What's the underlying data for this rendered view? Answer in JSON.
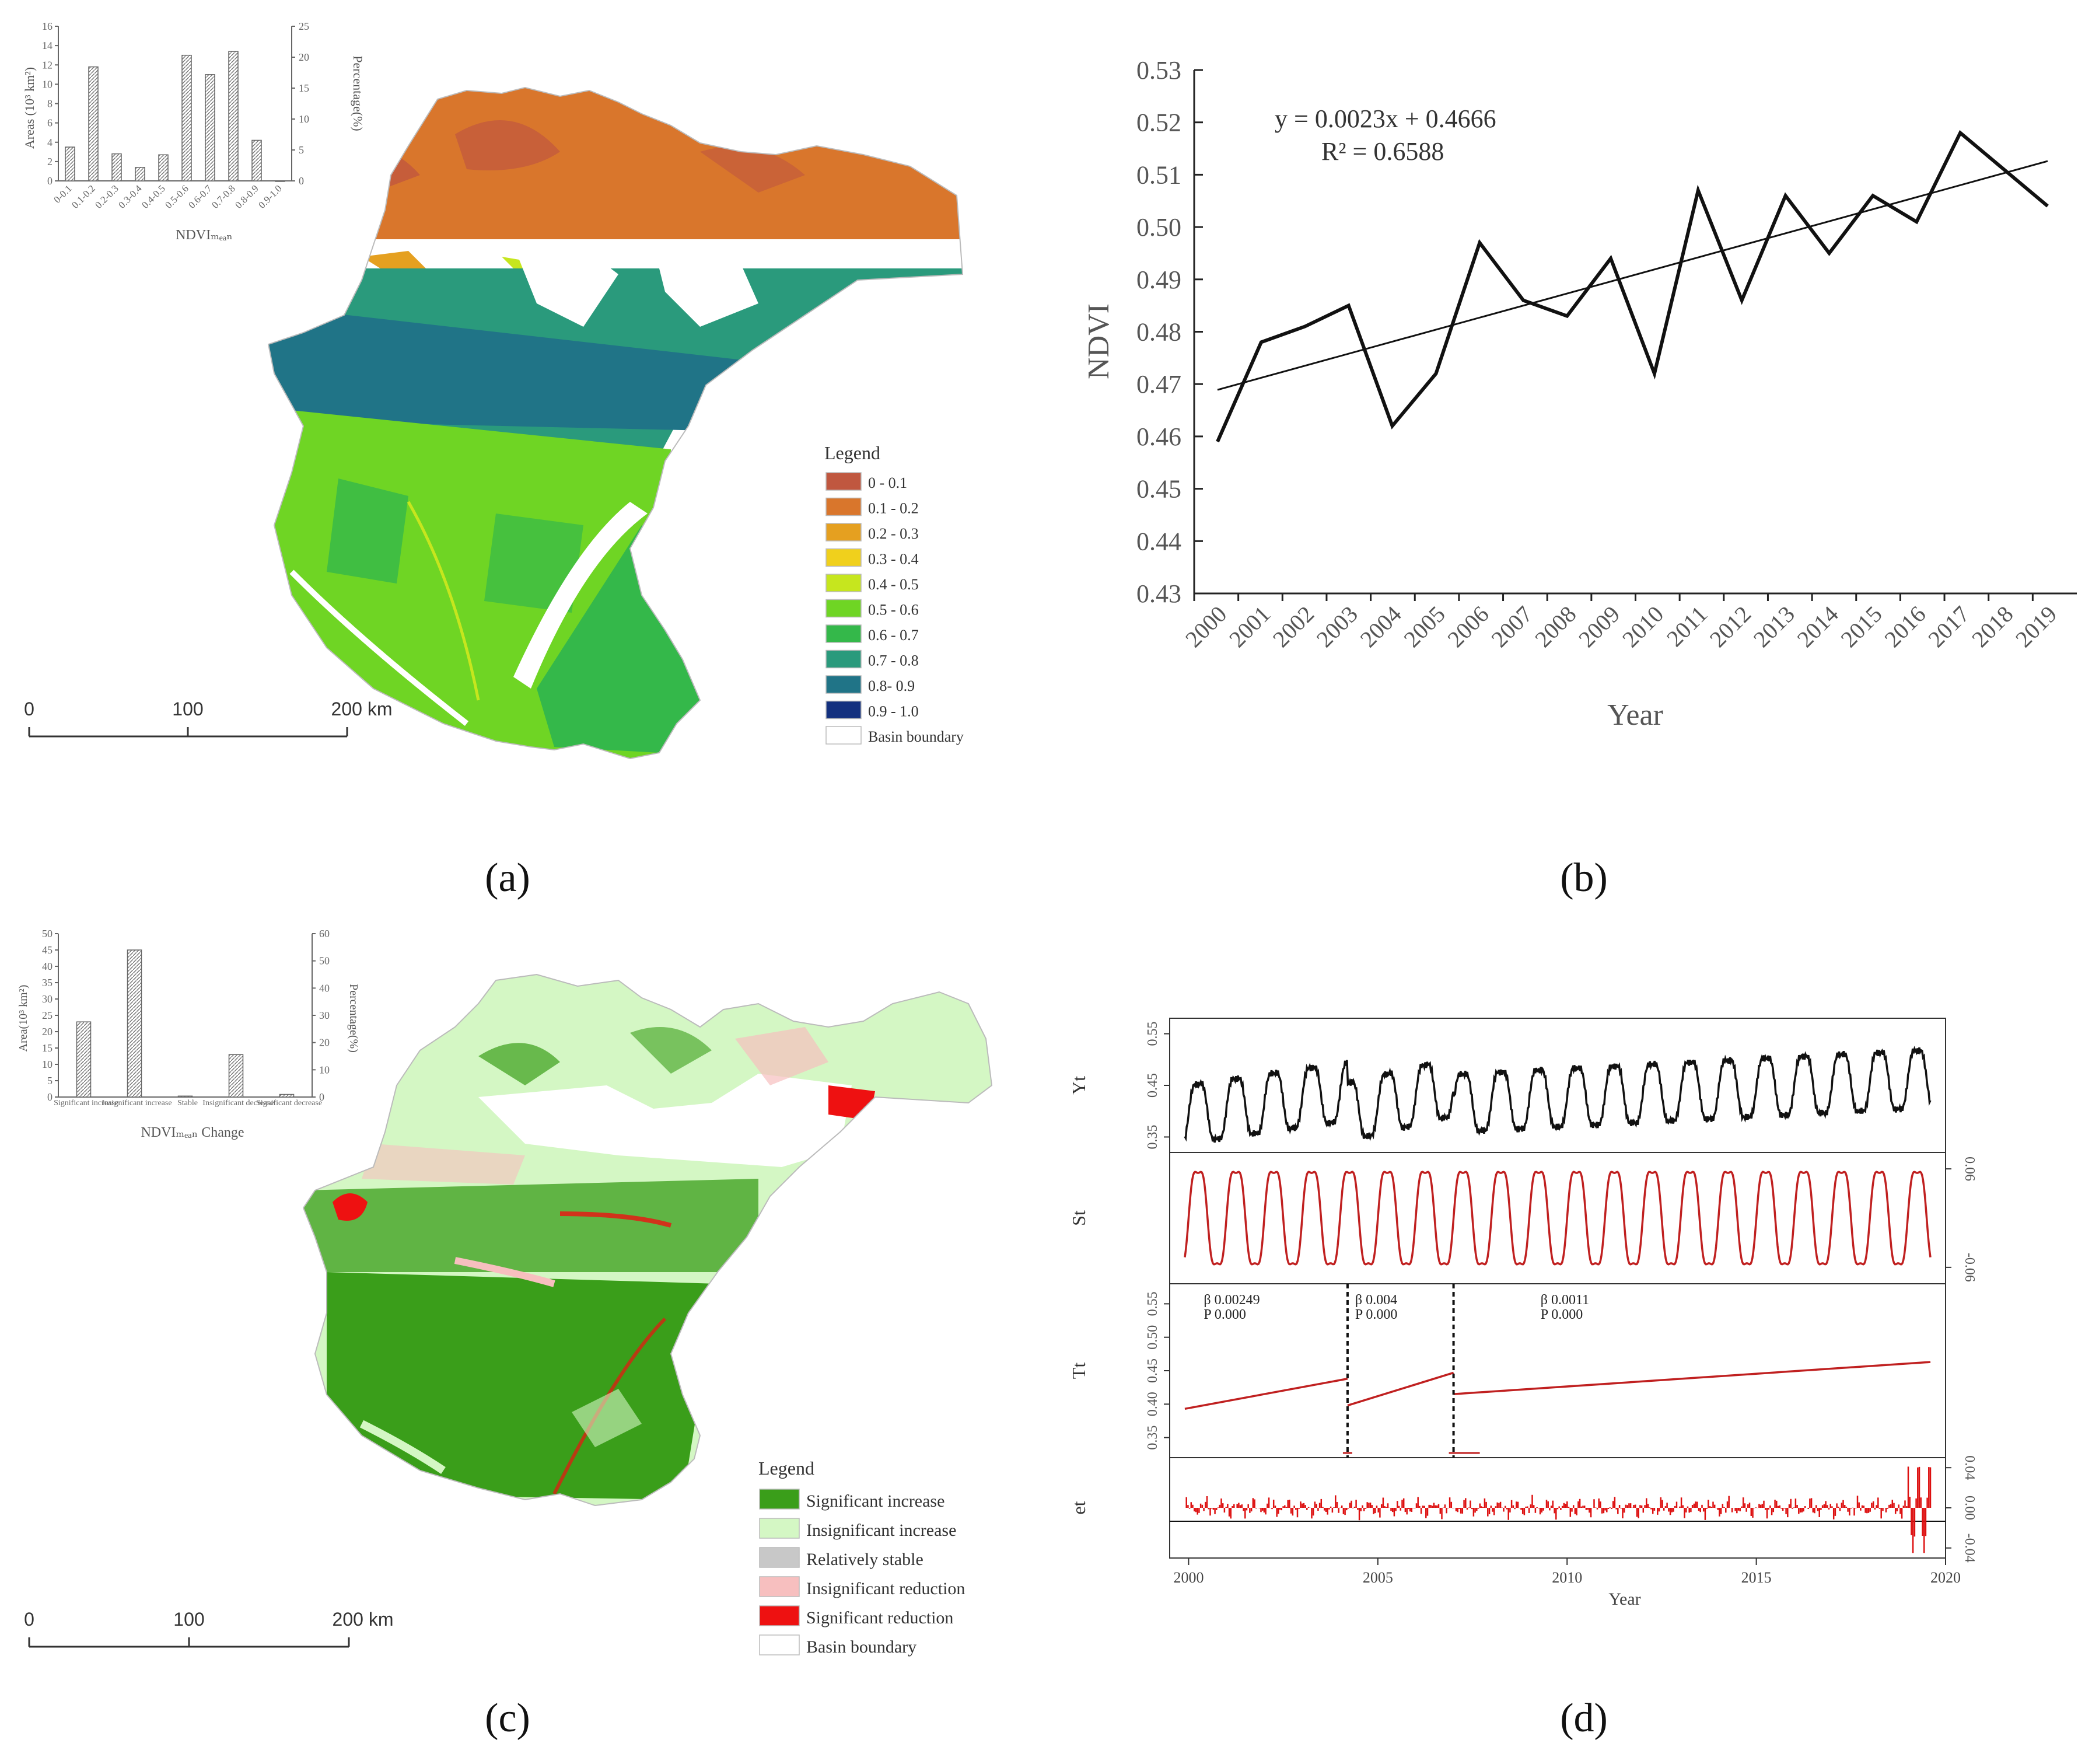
{
  "panel_labels": [
    "(a)",
    "(b)",
    "(c)",
    "(d)"
  ],
  "panel_a": {
    "legend_title": "Legend",
    "legend_items": [
      {
        "label": "0 - 0.1",
        "color": "#c0573f"
      },
      {
        "label": "0.1 - 0.2",
        "color": "#d9762c"
      },
      {
        "label": "0.2 - 0.3",
        "color": "#e5a020"
      },
      {
        "label": "0.3 - 0.4",
        "color": "#f0d01c"
      },
      {
        "label": "0.4 - 0.5",
        "color": "#c6e61e"
      },
      {
        "label": "0.5 - 0.6",
        "color": "#6fd524"
      },
      {
        "label": "0.6 - 0.7",
        "color": "#34b84a"
      },
      {
        "label": "0.7 - 0.8",
        "color": "#2a9a7c"
      },
      {
        "label": "0.8- 0.9",
        "color": "#207487"
      },
      {
        "label": "0.9 - 1.0",
        "color": "#13307f"
      },
      {
        "label": "Basin boundary",
        "color": "#ffffff"
      }
    ],
    "scale_labels": [
      "0",
      "100",
      "200 km"
    ],
    "inset": {
      "ylabel_left": "Areas (10³ km²)",
      "ylabel_right": "Percentage(%)",
      "xlabel": "NDVIₘₑₐₙ",
      "yticks_left": [
        "0",
        "2",
        "4",
        "6",
        "8",
        "10",
        "12",
        "14",
        "16"
      ],
      "yticks_right": [
        "0",
        "5",
        "10",
        "15",
        "20",
        "25"
      ],
      "categories": [
        "0-0.1",
        "0.1-0.2",
        "0.2-0.3",
        "0.3-0.4",
        "0.4-0.5",
        "0.5-0.6",
        "0.6-0.7",
        "0.7-0.8",
        "0.8-0.9",
        "0.9-1.0"
      ],
      "values": [
        3.5,
        11.8,
        2.8,
        1.4,
        2.7,
        13.0,
        11.0,
        13.4,
        4.2,
        0
      ]
    }
  },
  "panel_c": {
    "legend_title": "Legend",
    "legend_items": [
      {
        "label": "Significant increase",
        "color": "#3a9e1a"
      },
      {
        "label": "Insignificant increase",
        "color": "#d4f7c4"
      },
      {
        "label": "Relatively stable",
        "color": "#c8c8c8"
      },
      {
        "label": "Insignificant reduction",
        "color": "#f7bfbf"
      },
      {
        "label": "Significant reduction",
        "color": "#ee1111"
      },
      {
        "label": "Basin boundary",
        "color": "#ffffff"
      }
    ],
    "scale_labels": [
      "0",
      "100",
      "200 km"
    ],
    "inset": {
      "ylabel_left": "Area(10³ km²)",
      "ylabel_right": "Percentage(%)",
      "xlabel": "NDVIₘₑₐₙ Change",
      "yticks_left": [
        "0",
        "5",
        "10",
        "15",
        "20",
        "25",
        "30",
        "35",
        "40",
        "45",
        "50"
      ],
      "yticks_right": [
        "0",
        "10",
        "20",
        "30",
        "40",
        "50",
        "60"
      ],
      "categories": [
        "Significant increase",
        "Insignificant increase",
        "Stable",
        "Insignificant decrease",
        "Significant decrease"
      ],
      "values": [
        23,
        45,
        0.3,
        13,
        0.8
      ]
    }
  },
  "chart_data": [
    {
      "panel": "b",
      "type": "line",
      "xlabel": "Year",
      "ylabel": "NDVI",
      "ylim": [
        0.43,
        0.53
      ],
      "yticks": [
        "0.43",
        "0.44",
        "0.45",
        "0.46",
        "0.47",
        "0.48",
        "0.49",
        "0.50",
        "0.51",
        "0.52",
        "0.53"
      ],
      "x": [
        "2000",
        "2001",
        "2002",
        "2003",
        "2004",
        "2005",
        "2006",
        "2007",
        "2008",
        "2009",
        "2010",
        "2011",
        "2012",
        "2013",
        "2014",
        "2015",
        "2016",
        "2017",
        "2018",
        "2019"
      ],
      "values": [
        0.459,
        0.478,
        0.481,
        0.485,
        0.462,
        0.472,
        0.497,
        0.486,
        0.483,
        0.494,
        0.472,
        0.507,
        0.486,
        0.506,
        0.495,
        0.506,
        0.501,
        0.518,
        0.511,
        0.504
      ],
      "trendline": {
        "slope": 0.0023,
        "intercept": 0.4666
      },
      "annotations": [
        "y = 0.0023x + 0.4666",
        "R² = 0.6588"
      ]
    },
    {
      "panel": "d",
      "type": "line",
      "xlabel": "Year",
      "xticks": [
        "2000",
        "2005",
        "2010",
        "2015",
        "2020"
      ],
      "xlim": [
        1999.5,
        2020
      ],
      "rows": [
        {
          "name": "Yt",
          "yticks": [
            "0.35",
            "0.45",
            "0.55"
          ],
          "ylim": [
            0.32,
            0.58
          ]
        },
        {
          "name": "St",
          "yticks_right": [
            "-0.06",
            "0.06"
          ],
          "ylim": [
            -0.08,
            0.08
          ]
        },
        {
          "name": "Tt",
          "yticks": [
            "0.35",
            "0.40",
            "0.45",
            "0.50",
            "0.55"
          ],
          "ylim": [
            0.32,
            0.58
          ]
        },
        {
          "name": "et",
          "yticks_right": [
            "-0.04",
            "0.00",
            "0.04"
          ],
          "ylim": [
            -0.05,
            0.05
          ]
        }
      ],
      "trend_segments": [
        {
          "x": [
            1999.9,
            2004.2
          ],
          "y": [
            0.393,
            0.438
          ]
        },
        {
          "x": [
            2004.2,
            2007.0
          ],
          "y": [
            0.398,
            0.447
          ]
        },
        {
          "x": [
            2007.0,
            2019.6
          ],
          "y": [
            0.415,
            0.463
          ]
        }
      ],
      "breakpoints": [
        2004.2,
        2007.0
      ],
      "segment_labels": [
        {
          "beta": "β 0.00249",
          "p": "P 0.000"
        },
        {
          "beta": "β 0.004",
          "p": "P 0.000"
        },
        {
          "beta": "β 0.0011",
          "p": "P 0.000"
        }
      ]
    }
  ]
}
